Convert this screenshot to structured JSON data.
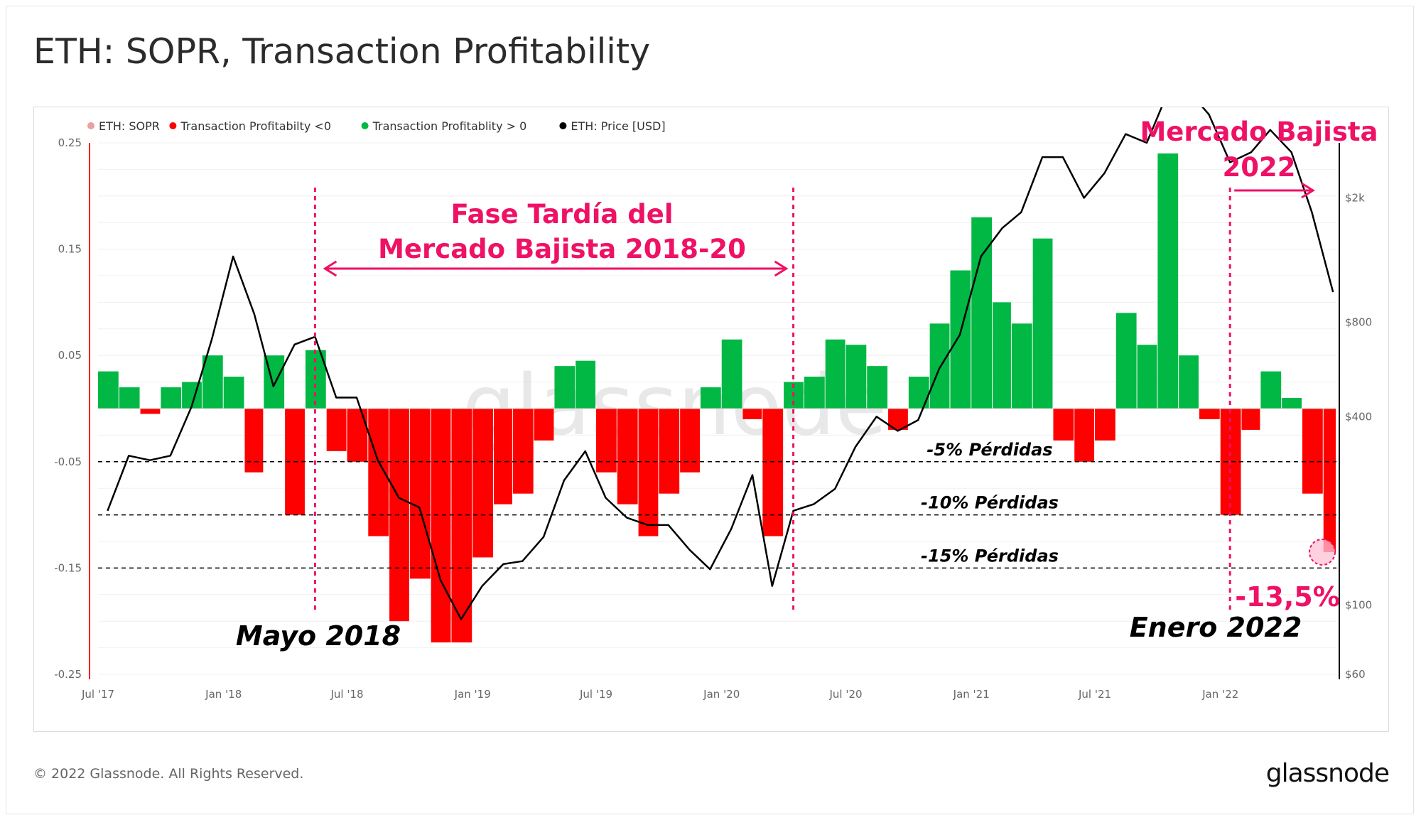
{
  "title": "ETH: SOPR, Transaction Profitability",
  "footer": {
    "copyright": "© 2022 Glassnode. All Rights Reserved.",
    "logo": "glassnode"
  },
  "watermark": "glassnode",
  "colors": {
    "loss": "#ff0000",
    "profit": "#00b843",
    "price": "#000000",
    "annotation": "#ee1166",
    "sopr_legend": "#e8a0a0"
  },
  "chart_data": {
    "type": "area",
    "legend_position": "top-left",
    "legend": [
      {
        "label": "ETH: SOPR",
        "color": "#ff0000",
        "muted": true
      },
      {
        "label": "Transaction Profitabilty <0",
        "color": "#ff0000"
      },
      {
        "label": "Transaction Profitablity > 0",
        "color": "#00b843"
      },
      {
        "label": "ETH: Price [USD]",
        "color": "#000000"
      }
    ],
    "x_ticks": [
      "Jul '17",
      "Jan '18",
      "Jul '18",
      "Jan '19",
      "Jul '19",
      "Jan '20",
      "Jul '20",
      "Jan '21",
      "Jul '21",
      "Jan '22"
    ],
    "x_range": [
      "2017-07-01",
      "2022-06-20"
    ],
    "y_left": {
      "ticks": [
        "0.25",
        "0.15",
        "0.05",
        "-0.05",
        "-0.15",
        "-0.25"
      ],
      "range": [
        -0.25,
        0.25
      ]
    },
    "y_right": {
      "scale": "log",
      "ticks": [
        "$2k",
        "$800",
        "$400",
        "$100",
        "$60"
      ],
      "range": [
        60,
        3000
      ]
    },
    "grid": true,
    "profitability": [
      [
        "2017-07",
        0.035
      ],
      [
        "2017-08",
        0.02
      ],
      [
        "2017-09",
        -0.005
      ],
      [
        "2017-10",
        0.02
      ],
      [
        "2017-11",
        0.025
      ],
      [
        "2017-12",
        0.05
      ],
      [
        "2018-01",
        0.03
      ],
      [
        "2018-02",
        -0.06
      ],
      [
        "2018-03",
        0.05
      ],
      [
        "2018-04",
        -0.1
      ],
      [
        "2018-05",
        0.055
      ],
      [
        "2018-06",
        -0.04
      ],
      [
        "2018-07",
        -0.05
      ],
      [
        "2018-08",
        -0.12
      ],
      [
        "2018-09",
        -0.2
      ],
      [
        "2018-10",
        -0.16
      ],
      [
        "2018-11",
        -0.22
      ],
      [
        "2018-12",
        -0.22
      ],
      [
        "2019-01",
        -0.14
      ],
      [
        "2019-02",
        -0.09
      ],
      [
        "2019-03",
        -0.08
      ],
      [
        "2019-04",
        -0.03
      ],
      [
        "2019-05",
        0.04
      ],
      [
        "2019-06",
        0.045
      ],
      [
        "2019-07",
        -0.06
      ],
      [
        "2019-08",
        -0.09
      ],
      [
        "2019-09",
        -0.12
      ],
      [
        "2019-10",
        -0.08
      ],
      [
        "2019-11",
        -0.06
      ],
      [
        "2019-12",
        0.02
      ],
      [
        "2020-01",
        0.065
      ],
      [
        "2020-02",
        -0.01
      ],
      [
        "2020-03",
        -0.12
      ],
      [
        "2020-04",
        0.025
      ],
      [
        "2020-05",
        0.03
      ],
      [
        "2020-06",
        0.065
      ],
      [
        "2020-07",
        0.06
      ],
      [
        "2020-08",
        0.04
      ],
      [
        "2020-09",
        -0.02
      ],
      [
        "2020-10",
        0.03
      ],
      [
        "2020-11",
        0.08
      ],
      [
        "2020-12",
        0.13
      ],
      [
        "2021-01",
        0.18
      ],
      [
        "2021-02",
        0.1
      ],
      [
        "2021-03",
        0.08
      ],
      [
        "2021-04",
        0.16
      ],
      [
        "2021-05",
        -0.03
      ],
      [
        "2021-06",
        -0.05
      ],
      [
        "2021-07",
        -0.03
      ],
      [
        "2021-08",
        0.09
      ],
      [
        "2021-09",
        0.06
      ],
      [
        "2021-10",
        0.24
      ],
      [
        "2021-11",
        0.05
      ],
      [
        "2021-12",
        -0.01
      ],
      [
        "2022-01",
        -0.1
      ],
      [
        "2022-02",
        -0.02
      ],
      [
        "2022-03",
        0.035
      ],
      [
        "2022-04",
        0.01
      ],
      [
        "2022-05",
        -0.08
      ],
      [
        "2022-06",
        -0.135
      ]
    ],
    "price_usd": [
      [
        "2017-07",
        200
      ],
      [
        "2017-08",
        300
      ],
      [
        "2017-09",
        290
      ],
      [
        "2017-10",
        300
      ],
      [
        "2017-11",
        430
      ],
      [
        "2017-12",
        710
      ],
      [
        "2018-01",
        1300
      ],
      [
        "2018-02",
        850
      ],
      [
        "2018-03",
        500
      ],
      [
        "2018-04",
        680
      ],
      [
        "2018-05",
        720
      ],
      [
        "2018-06",
        460
      ],
      [
        "2018-07",
        460
      ],
      [
        "2018-08",
        290
      ],
      [
        "2018-09",
        220
      ],
      [
        "2018-10",
        205
      ],
      [
        "2018-11",
        120
      ],
      [
        "2018-12",
        90
      ],
      [
        "2019-01",
        115
      ],
      [
        "2019-02",
        135
      ],
      [
        "2019-03",
        138
      ],
      [
        "2019-04",
        165
      ],
      [
        "2019-05",
        250
      ],
      [
        "2019-06",
        310
      ],
      [
        "2019-07",
        220
      ],
      [
        "2019-08",
        190
      ],
      [
        "2019-09",
        180
      ],
      [
        "2019-10",
        180
      ],
      [
        "2019-11",
        150
      ],
      [
        "2019-12",
        130
      ],
      [
        "2020-01",
        175
      ],
      [
        "2020-02",
        260
      ],
      [
        "2020-03",
        115
      ],
      [
        "2020-04",
        200
      ],
      [
        "2020-05",
        210
      ],
      [
        "2020-06",
        235
      ],
      [
        "2020-07",
        320
      ],
      [
        "2020-08",
        400
      ],
      [
        "2020-09",
        360
      ],
      [
        "2020-10",
        390
      ],
      [
        "2020-11",
        570
      ],
      [
        "2020-12",
        730
      ],
      [
        "2021-01",
        1300
      ],
      [
        "2021-02",
        1600
      ],
      [
        "2021-03",
        1800
      ],
      [
        "2021-04",
        2700
      ],
      [
        "2021-05",
        2700
      ],
      [
        "2021-06",
        2000
      ],
      [
        "2021-07",
        2400
      ],
      [
        "2021-08",
        3200
      ],
      [
        "2021-09",
        3000
      ],
      [
        "2021-10",
        4300
      ],
      [
        "2021-11",
        4400
      ],
      [
        "2021-12",
        3700
      ],
      [
        "2022-01",
        2600
      ],
      [
        "2022-02",
        2800
      ],
      [
        "2022-03",
        3300
      ],
      [
        "2022-04",
        2800
      ],
      [
        "2022-05",
        1800
      ],
      [
        "2022-06",
        1000
      ]
    ],
    "reference_lines": [
      {
        "value": -0.05,
        "label": "-5% Pérdidas"
      },
      {
        "value": -0.1,
        "label": "-10% Pérdidas"
      },
      {
        "value": -0.15,
        "label": "-15% Pérdidas"
      }
    ],
    "vertical_markers": [
      {
        "date": "2018-05",
        "label": "Mayo 2018"
      },
      {
        "date": "2020-04",
        "label": ""
      },
      {
        "date": "2022-01",
        "label": "Enero 2022"
      }
    ],
    "annotations": {
      "bear_late_line1": "Fase Tardía del",
      "bear_late_line2": "Mercado Bajista 2018-20",
      "bear_2022_line1": "Mercado Bajista",
      "bear_2022_line2": "2022",
      "current_value": "-13,5%"
    }
  }
}
